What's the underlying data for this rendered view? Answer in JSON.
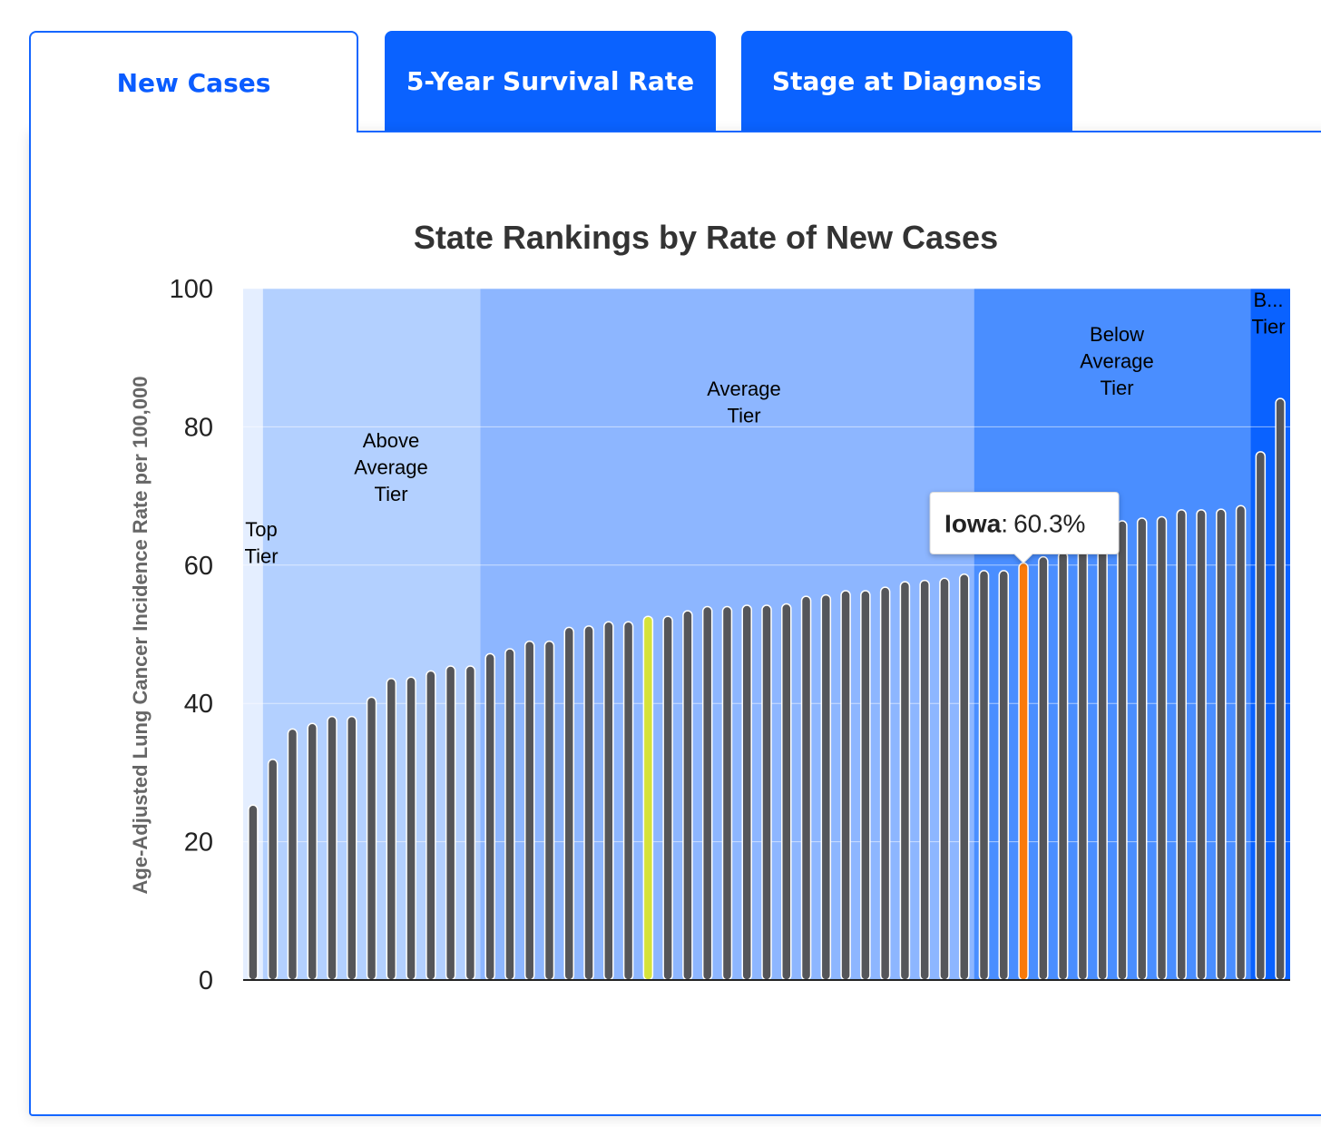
{
  "tabs": [
    {
      "label": "New Cases",
      "active": true
    },
    {
      "label": "5-Year Survival Rate",
      "active": false
    },
    {
      "label": "Stage at Diagnosis",
      "active": false
    }
  ],
  "colors": {
    "bar": "#55565a",
    "bar_highlight": "#fa7a0a",
    "bar_average": "#d6e23a",
    "tier_top": "#e4eeff",
    "tier_above": "#b3d0ff",
    "tier_average": "#8db6ff",
    "tier_below": "#4a8eff",
    "tier_bottom": "#0a62ff",
    "grid": "#e6e6e6"
  },
  "chart_data": {
    "type": "bar",
    "title": "State Rankings by Rate of New Cases",
    "xlabel": "",
    "ylabel": "Age-Adjusted Lung Cancer Incidence Rate per 100,000",
    "ylim": [
      0,
      100
    ],
    "yticks": [
      0,
      20,
      40,
      60,
      80,
      100
    ],
    "values": [
      25.3,
      31.9,
      36.3,
      37.1,
      38.1,
      38.1,
      40.9,
      43.6,
      43.8,
      44.7,
      45.4,
      45.4,
      47.2,
      47.9,
      49.0,
      49.0,
      51.0,
      51.2,
      51.8,
      51.8,
      52.6,
      52.6,
      53.4,
      54.0,
      54.0,
      54.2,
      54.2,
      54.4,
      55.5,
      55.7,
      56.3,
      56.3,
      56.8,
      57.6,
      57.8,
      58.1,
      58.7,
      59.2,
      59.2,
      60.3,
      61.2,
      61.9,
      62.5,
      65.8,
      66.4,
      66.8,
      67.0,
      68.0,
      68.0,
      68.1,
      68.6,
      76.4,
      84.1
    ],
    "highlight": {
      "index": 39,
      "name": "Iowa",
      "value": "60.3%"
    },
    "average_index": 20,
    "tooltip": {
      "name": "Iowa",
      "separator": ":",
      "value": "60.3%"
    },
    "tiers": [
      {
        "name": "Top Tier",
        "lines": [
          "Top",
          "Tier"
        ],
        "start": 0,
        "end": 1
      },
      {
        "name": "Above Average Tier",
        "lines": [
          "Above",
          "Average",
          "Tier"
        ],
        "start": 1,
        "end": 12
      },
      {
        "name": "Average Tier",
        "lines": [
          "Average",
          "Tier"
        ],
        "start": 12,
        "end": 37
      },
      {
        "name": "Below Average Tier",
        "lines": [
          "Below",
          "Average",
          "Tier"
        ],
        "start": 37,
        "end": 51
      },
      {
        "name": "Bottom Tier",
        "lines": [
          "B...",
          "Tier"
        ],
        "start": 51,
        "end": 53
      }
    ]
  }
}
